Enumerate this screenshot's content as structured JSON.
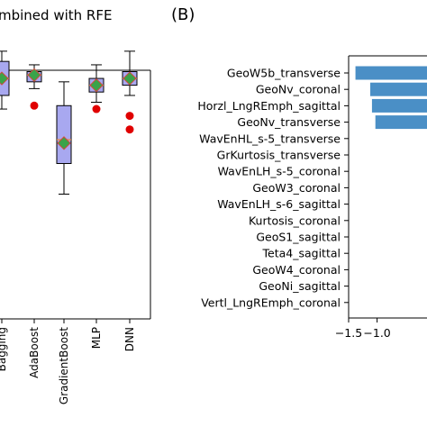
{
  "panel_a": {
    "title_fragment": "mbined with RFE"
  },
  "panel_b": {
    "label": "(B)"
  },
  "colors": {
    "box_fill": "#a8a8f0",
    "box_edge": "#000000",
    "mean_marker": "#3aa34a",
    "outlier": "#e00000",
    "bar": "#4a8fc6"
  },
  "chart_data": [
    {
      "type": "box",
      "title": "mbined with RFE",
      "categories": [
        "Bagging",
        "AdaBoost",
        "GradientBoost",
        "MLP",
        "DNN"
      ],
      "boxes": [
        {
          "name": "Bagging",
          "whisker_low": 0.8,
          "q1": 0.84,
          "median": 0.89,
          "q3": 0.94,
          "whisker_high": 0.97,
          "mean": 0.89,
          "outliers": []
        },
        {
          "name": "AdaBoost",
          "whisker_low": 0.86,
          "q1": 0.88,
          "median": 0.9,
          "q3": 0.91,
          "whisker_high": 0.93,
          "mean": 0.9,
          "outliers": [
            0.81
          ]
        },
        {
          "name": "GradientBoost",
          "whisker_low": 0.55,
          "q1": 0.64,
          "median": 0.71,
          "q3": 0.81,
          "whisker_high": 0.88,
          "mean": 0.7,
          "outliers": []
        },
        {
          "name": "MLP",
          "whisker_low": 0.82,
          "q1": 0.85,
          "median": 0.87,
          "q3": 0.89,
          "whisker_high": 0.93,
          "mean": 0.87,
          "outliers": [
            0.8
          ]
        },
        {
          "name": "DNN",
          "whisker_low": 0.84,
          "q1": 0.87,
          "median": 0.89,
          "q3": 0.91,
          "whisker_high": 0.97,
          "mean": 0.89,
          "outliers": [
            0.78,
            0.74
          ]
        }
      ]
    },
    {
      "type": "bar",
      "orientation": "horizontal",
      "categories": [
        "GeoW5b_transverse",
        "GeoNv_coronal",
        "Horzl_LngREmph_sagittal",
        "GeoNv_transverse",
        "WavEnHL_s-5_transverse",
        "GrKurtosis_transverse",
        "WavEnLH_s-5_coronal",
        "GeoW3_coronal",
        "WavEnLH_s-6_sagittal",
        "Kurtosis_coronal",
        "GeoS1_sagittal",
        "Teta4_sagittal",
        "GeoW4_coronal",
        "GeoNi_sagittal",
        "Vertl_LngREmph_coronal"
      ],
      "values": [
        -1.38,
        -1.12,
        -1.09,
        -1.03,
        0,
        0,
        0,
        0,
        0,
        0,
        0,
        0,
        0,
        0,
        0
      ],
      "xticks": [
        "−1.5",
        "−1.0"
      ],
      "xtick_values": [
        -1.5,
        -1.0
      ]
    }
  ]
}
